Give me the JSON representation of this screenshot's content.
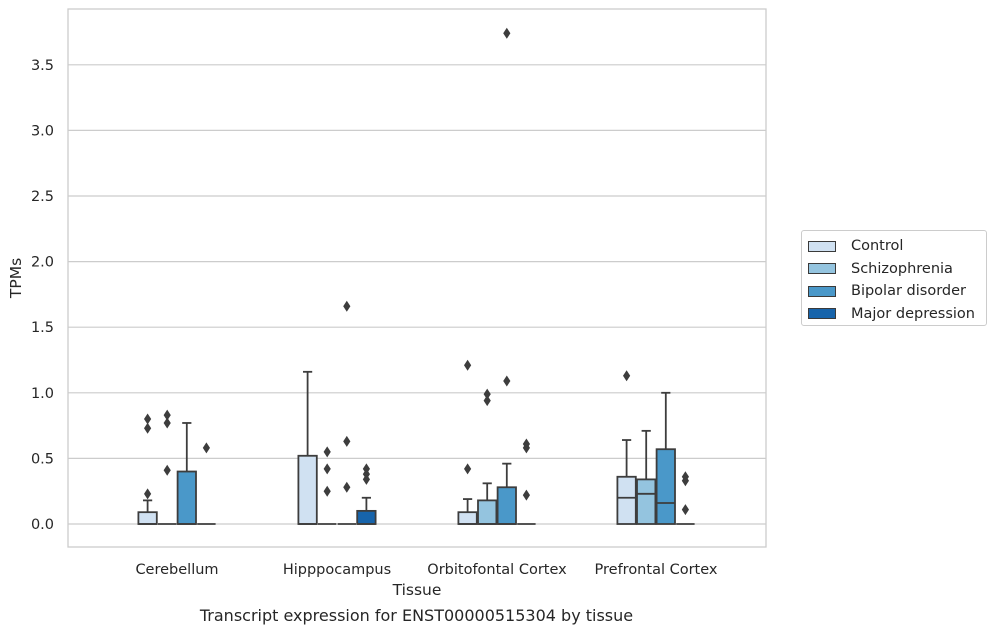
{
  "caption": "Transcript expression for ENST00000515304 by tissue",
  "chart_data": {
    "type": "box",
    "xlabel": "Tissue",
    "ylabel": "TPMs",
    "ylim": [
      -0.18,
      3.95
    ],
    "yticks": [
      "0.0",
      "0.5",
      "1.0",
      "1.5",
      "2.0",
      "2.5",
      "3.0",
      "3.5"
    ],
    "grid": "horizontal",
    "legend_position": "right",
    "categories": [
      "Cerebellum",
      "Hipppocampus",
      "Orbitofontal Cortex",
      "Prefrontal Cortex"
    ],
    "series": [
      {
        "name": "Control",
        "color": "#d0e1f2",
        "boxes": [
          {
            "q1": 0,
            "median": 0,
            "q3": 0.09,
            "whisker_low": 0,
            "whisker_high": 0.18,
            "outliers": [
              0.23,
              0.73,
              0.8
            ]
          },
          {
            "q1": 0,
            "median": 0,
            "q3": 0.52,
            "whisker_low": 0,
            "whisker_high": 1.16,
            "outliers": []
          },
          {
            "q1": 0,
            "median": 0,
            "q3": 0.09,
            "whisker_low": 0,
            "whisker_high": 0.19,
            "outliers": [
              0.42,
              1.21
            ]
          },
          {
            "q1": 0,
            "median": 0.2,
            "q3": 0.36,
            "whisker_low": 0,
            "whisker_high": 0.64,
            "outliers": [
              1.13
            ]
          }
        ]
      },
      {
        "name": "Schizophrenia",
        "color": "#94c4df",
        "boxes": [
          {
            "q1": 0,
            "median": 0,
            "q3": 0,
            "whisker_low": 0,
            "whisker_high": 0,
            "outliers": [
              0.41,
              0.77,
              0.83
            ]
          },
          {
            "q1": 0,
            "median": 0,
            "q3": 0,
            "whisker_low": 0,
            "whisker_high": 0,
            "outliers": [
              0.25,
              0.42,
              0.55
            ]
          },
          {
            "q1": 0,
            "median": 0,
            "q3": 0.18,
            "whisker_low": 0,
            "whisker_high": 0.31,
            "outliers": [
              0.94,
              0.99
            ]
          },
          {
            "q1": 0,
            "median": 0.23,
            "q3": 0.34,
            "whisker_low": 0,
            "whisker_high": 0.71,
            "outliers": []
          }
        ]
      },
      {
        "name": "Bipolar disorder",
        "color": "#4a98c9",
        "boxes": [
          {
            "q1": 0,
            "median": 0,
            "q3": 0.4,
            "whisker_low": 0,
            "whisker_high": 0.77,
            "outliers": []
          },
          {
            "q1": 0,
            "median": 0,
            "q3": 0,
            "whisker_low": 0,
            "whisker_high": 0,
            "outliers": [
              0.28,
              0.63,
              1.66
            ]
          },
          {
            "q1": 0,
            "median": 0,
            "q3": 0.28,
            "whisker_low": 0,
            "whisker_high": 0.46,
            "outliers": [
              1.09,
              3.74
            ]
          },
          {
            "q1": 0,
            "median": 0.16,
            "q3": 0.57,
            "whisker_low": 0,
            "whisker_high": 1.0,
            "outliers": []
          }
        ]
      },
      {
        "name": "Major depression",
        "color": "#1764ab",
        "boxes": [
          {
            "q1": 0,
            "median": 0,
            "q3": 0,
            "whisker_low": 0,
            "whisker_high": 0,
            "outliers": [
              0.58
            ]
          },
          {
            "q1": 0,
            "median": 0,
            "q3": 0.1,
            "whisker_low": 0,
            "whisker_high": 0.2,
            "outliers": [
              0.34,
              0.38,
              0.42
            ]
          },
          {
            "q1": 0,
            "median": 0,
            "q3": 0,
            "whisker_low": 0,
            "whisker_high": 0,
            "outliers": [
              0.22,
              0.58,
              0.61
            ]
          },
          {
            "q1": 0,
            "median": 0,
            "q3": 0,
            "whisker_low": 0,
            "whisker_high": 0,
            "outliers": [
              0.11,
              0.33,
              0.36
            ]
          }
        ]
      }
    ]
  }
}
